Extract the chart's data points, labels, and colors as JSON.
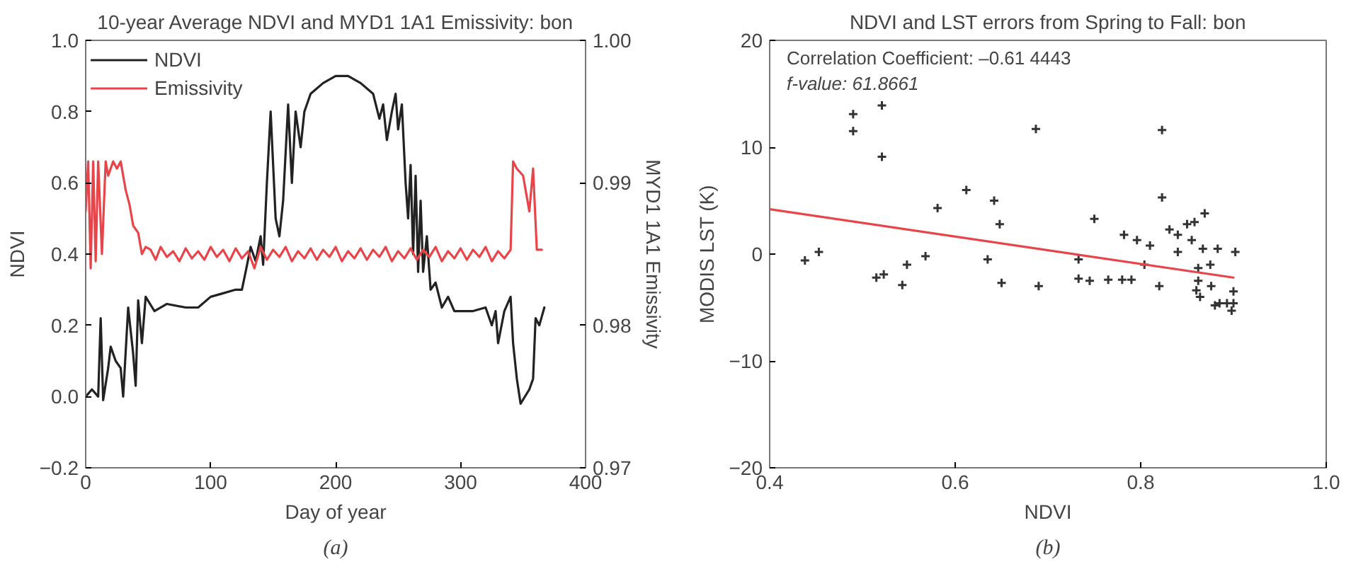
{
  "chart_data": [
    {
      "type": "line",
      "title": "10-year Average NDVI and MYD1 1A1 Emissivity: bon",
      "xlabel": "Day of year",
      "ylabel": "NDVI",
      "y2label": "MYD1 1A1 Emissivity",
      "xlim": [
        0,
        400
      ],
      "xticks": [
        0,
        100,
        200,
        300,
        400
      ],
      "ylim": [
        -0.2,
        1.0
      ],
      "yticks": [
        {
          "value": -0.2,
          "label": "−0.2"
        },
        {
          "value": 0,
          "label": "0.0"
        },
        0.2,
        0.4,
        0.6,
        0.8,
        {
          "value": 1.0,
          "label": "1.0"
        }
      ],
      "y2lim": [
        0.97,
        1.0
      ],
      "y2ticks": [
        0.97,
        0.98,
        0.99,
        {
          "value": 1.0,
          "label": "1.00"
        }
      ],
      "legend": "top left",
      "grid": false,
      "line_style": "solid",
      "marker": "none",
      "annotations": [
        "(a)"
      ],
      "series": [
        {
          "name": "NDVI",
          "color": "#222222",
          "x": [
            0,
            5,
            10,
            12,
            14,
            18,
            20,
            24,
            28,
            30,
            34,
            38,
            40,
            42,
            45,
            48,
            55,
            65,
            80,
            90,
            100,
            110,
            120,
            125,
            128,
            132,
            136,
            140,
            142,
            145,
            148,
            150,
            152,
            155,
            158,
            162,
            165,
            168,
            172,
            175,
            180,
            190,
            200,
            210,
            220,
            230,
            235,
            238,
            241,
            245,
            248,
            250,
            253,
            256,
            258,
            260,
            262,
            264,
            266,
            268,
            270,
            273,
            276,
            280,
            285,
            290,
            295,
            310,
            320,
            325,
            328,
            330,
            335,
            340,
            342,
            345,
            348,
            355,
            358,
            360,
            363,
            367
          ],
          "values": [
            0.0,
            0.02,
            0.0,
            0.22,
            -0.01,
            0.08,
            0.14,
            0.1,
            0.08,
            0.0,
            0.25,
            0.12,
            0.03,
            0.27,
            0.15,
            0.28,
            0.24,
            0.26,
            0.25,
            0.25,
            0.28,
            0.29,
            0.3,
            0.3,
            0.35,
            0.42,
            0.38,
            0.45,
            0.37,
            0.6,
            0.8,
            0.65,
            0.5,
            0.45,
            0.55,
            0.82,
            0.6,
            0.8,
            0.7,
            0.8,
            0.85,
            0.88,
            0.9,
            0.9,
            0.88,
            0.85,
            0.78,
            0.82,
            0.72,
            0.8,
            0.85,
            0.75,
            0.82,
            0.6,
            0.5,
            0.65,
            0.4,
            0.62,
            0.35,
            0.55,
            0.35,
            0.45,
            0.3,
            0.32,
            0.25,
            0.28,
            0.24,
            0.24,
            0.25,
            0.2,
            0.24,
            0.15,
            0.24,
            0.28,
            0.15,
            0.05,
            -0.02,
            0.02,
            0.05,
            0.22,
            0.2,
            0.25
          ]
        },
        {
          "name": "Emissivity",
          "color": "#e8454a",
          "axis": "y2",
          "x": [
            0,
            2,
            4,
            6,
            8,
            10,
            13,
            16,
            18,
            22,
            25,
            28,
            32,
            35,
            38,
            42,
            45,
            48,
            52,
            56,
            60,
            65,
            70,
            75,
            80,
            85,
            90,
            95,
            100,
            105,
            110,
            115,
            120,
            125,
            130,
            135,
            140,
            145,
            150,
            155,
            160,
            165,
            170,
            175,
            180,
            185,
            190,
            195,
            200,
            205,
            210,
            215,
            220,
            225,
            230,
            235,
            240,
            245,
            250,
            255,
            260,
            265,
            270,
            275,
            280,
            285,
            290,
            295,
            300,
            305,
            310,
            315,
            320,
            325,
            330,
            335,
            340,
            342,
            345,
            350,
            355,
            358,
            361,
            365
          ],
          "values": [
            0.988,
            0.9915,
            0.984,
            0.9915,
            0.9845,
            0.9915,
            0.985,
            0.9915,
            0.9905,
            0.9915,
            0.991,
            0.9915,
            0.9895,
            0.9885,
            0.987,
            0.9865,
            0.985,
            0.9855,
            0.9853,
            0.9846,
            0.9855,
            0.9848,
            0.9852,
            0.9845,
            0.9854,
            0.9847,
            0.9852,
            0.9846,
            0.9855,
            0.9848,
            0.9853,
            0.9845,
            0.9854,
            0.9847,
            0.9852,
            0.984,
            0.9855,
            0.9846,
            0.9853,
            0.9848,
            0.9855,
            0.9845,
            0.9852,
            0.9847,
            0.9854,
            0.9846,
            0.9853,
            0.9848,
            0.9855,
            0.9845,
            0.9852,
            0.9847,
            0.9854,
            0.9846,
            0.9853,
            0.9848,
            0.9855,
            0.9845,
            0.9852,
            0.9847,
            0.9854,
            0.9846,
            0.9853,
            0.9848,
            0.9855,
            0.9845,
            0.9852,
            0.9847,
            0.9854,
            0.9846,
            0.9853,
            0.9848,
            0.9855,
            0.9845,
            0.9852,
            0.9847,
            0.9853,
            0.9915,
            0.991,
            0.9905,
            0.988,
            0.991,
            0.9853,
            0.9853
          ]
        }
      ]
    },
    {
      "type": "scatter",
      "title": "NDVI and LST errors from Spring to Fall: bon",
      "xlabel": "NDVI",
      "ylabel": "MODIS LST (K)",
      "xlim": [
        0.4,
        1.0
      ],
      "xticks": [
        0.4,
        0.6,
        0.8,
        {
          "value": 1.0,
          "label": "1.0"
        }
      ],
      "ylim": [
        -20,
        20
      ],
      "yticks": [
        {
          "value": -20,
          "label": "−20"
        },
        {
          "value": -10,
          "label": "−10"
        },
        0,
        10,
        20
      ],
      "grid": false,
      "annotations": [
        "Correlation Coefficient: –0.61 4443",
        "f-value: 61.8661",
        "(b)"
      ],
      "series": [
        {
          "color": "#333333",
          "marker": "cross",
          "x": [
            0.438,
            0.453,
            0.49,
            0.49,
            0.521,
            0.521,
            0.515,
            0.523,
            0.543,
            0.548,
            0.568,
            0.581,
            0.612,
            0.642,
            0.648,
            0.635,
            0.65,
            0.687,
            0.733,
            0.75,
            0.782,
            0.796,
            0.81,
            0.823,
            0.823,
            0.831,
            0.84,
            0.85,
            0.858,
            0.869,
            0.855,
            0.84,
            0.867,
            0.883,
            0.902,
            0.875,
            0.804,
            0.69,
            0.733,
            0.745,
            0.765,
            0.78,
            0.79,
            0.82,
            0.862,
            0.864,
            0.876,
            0.88,
            0.885,
            0.893,
            0.9,
            0.9,
            0.898,
            0.86,
            0.862
          ],
          "values": [
            -0.6,
            0.2,
            11.5,
            13.1,
            13.9,
            9.1,
            -2.2,
            -1.9,
            -2.9,
            -1.0,
            -0.2,
            4.3,
            6.0,
            5.0,
            2.8,
            -0.5,
            -2.7,
            11.7,
            -0.5,
            3.3,
            1.8,
            1.3,
            0.8,
            11.6,
            5.3,
            2.3,
            1.8,
            2.8,
            3.0,
            3.8,
            1.3,
            0.2,
            0.5,
            0.5,
            0.2,
            -1.0,
            -1.0,
            -3.0,
            -2.3,
            -2.5,
            -2.4,
            -2.4,
            -2.4,
            -3.0,
            -2.5,
            -4.0,
            -3.0,
            -4.8,
            -4.6,
            -4.6,
            -4.6,
            -3.5,
            -5.3,
            -3.4,
            -1.3
          ]
        },
        {
          "type": "line",
          "color": "#e8454a",
          "x": [
            0.4,
            0.9
          ],
          "values": [
            4.2,
            -2.2
          ]
        }
      ]
    }
  ]
}
